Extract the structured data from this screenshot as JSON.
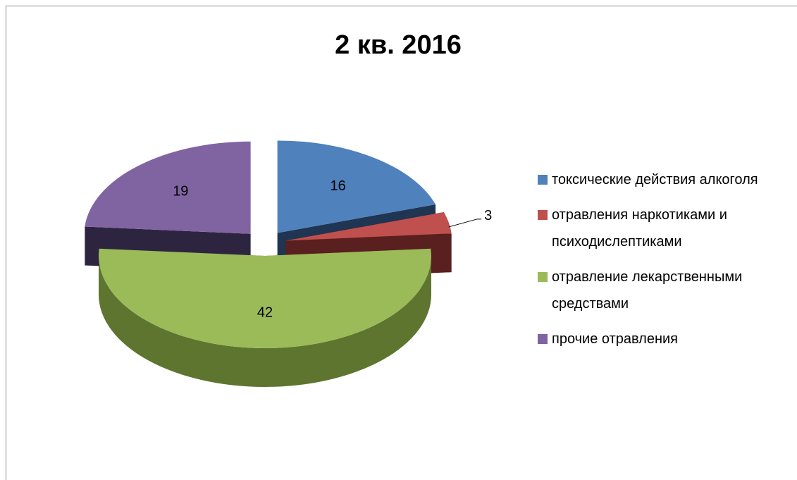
{
  "chart_data": {
    "type": "pie",
    "title": "2 кв. 2016",
    "categories": [
      "токсические действия алкоголя",
      "отравления наркотиками и психодислептиками",
      "отравление лекарственными средствами",
      "прочие отравления"
    ],
    "values": [
      16,
      3,
      42,
      19
    ],
    "colors": [
      "#4f81bd",
      "#c0504d",
      "#9bbb59",
      "#8064a2"
    ],
    "side_colors": [
      "#1f3552",
      "#5a1f1f",
      "#5e7530",
      "#2d2540"
    ],
    "legend": "right"
  }
}
